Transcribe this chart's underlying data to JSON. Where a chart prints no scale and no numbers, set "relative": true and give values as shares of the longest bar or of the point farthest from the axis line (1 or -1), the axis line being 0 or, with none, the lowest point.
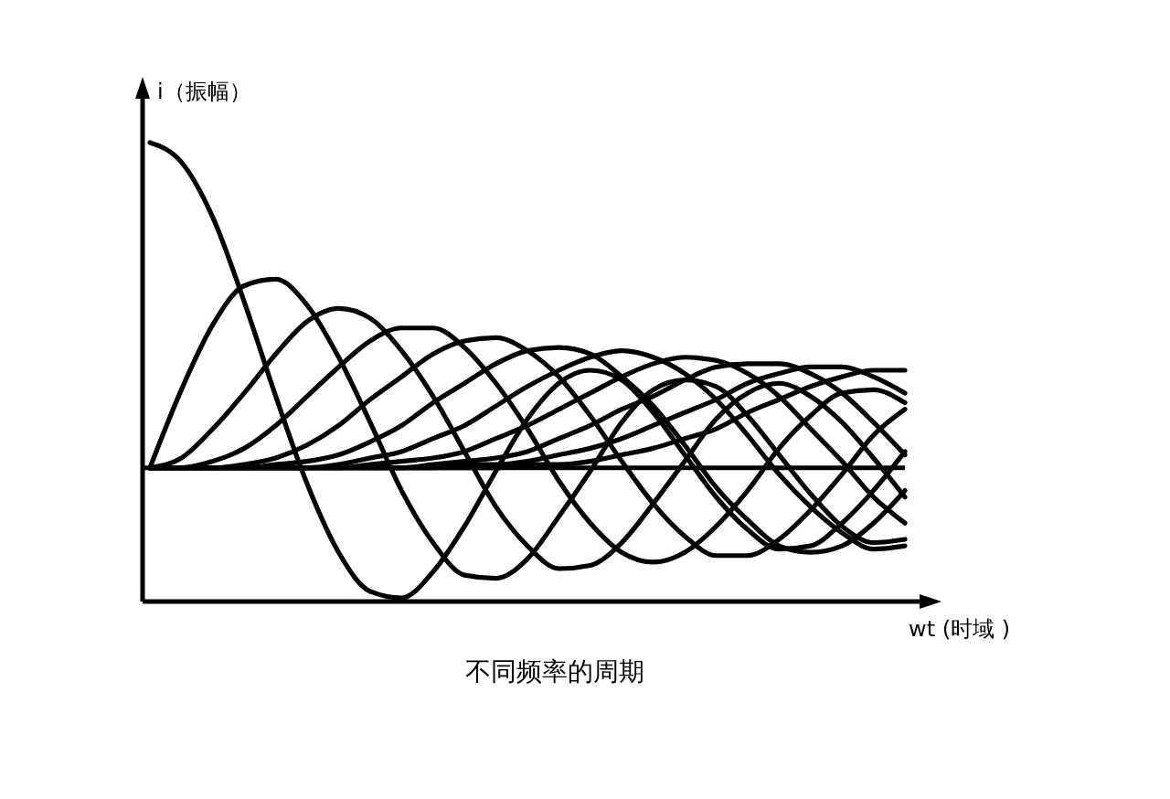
{
  "chart_data": {
    "type": "line",
    "title": "不同频率的周期",
    "xlabel": "wt (时域 )",
    "ylabel": "i（振幅）",
    "relative": true,
    "categories": [
      null,
      null,
      null,
      null,
      null,
      null,
      null,
      null,
      null,
      null,
      null,
      null,
      null,
      null,
      null,
      null,
      null,
      null,
      null,
      null,
      null,
      null,
      null,
      null,
      null
    ],
    "series": [
      {
        "color": "#000000",
        "values": [
          1,
          0.94,
          0.77,
          0.51,
          0.22,
          -0.05,
          -0.26,
          -0.38,
          -0.4,
          -0.32,
          -0.18,
          -0.01,
          0.15,
          0.26,
          0.3,
          0.27,
          0.17,
          0.04,
          -0.09,
          -0.19,
          -0.25,
          -0.24,
          -0.17,
          -0.07,
          0.05
        ]
      },
      {
        "color": "#000000",
        "values": [
          0,
          0.24,
          0.44,
          0.56,
          0.58,
          0.5,
          0.34,
          0.14,
          -0.07,
          -0.23,
          -0.33,
          -0.34,
          -0.28,
          -0.15,
          -0.01,
          0.14,
          0.24,
          0.27,
          0.25,
          0.16,
          0.04,
          -0.08,
          -0.18,
          -0.23,
          -0.22
        ]
      },
      {
        "color": "#000000",
        "values": [
          0,
          0.03,
          0.12,
          0.23,
          0.35,
          0.45,
          0.49,
          0.46,
          0.36,
          0.22,
          0.05,
          -0.12,
          -0.24,
          -0.31,
          -0.3,
          -0.23,
          -0.11,
          0.02,
          0.15,
          0.23,
          0.26,
          0.22,
          0.14,
          0.03,
          -0.09
        ]
      },
      {
        "color": "#000000",
        "values": [
          0,
          0,
          0.02,
          0.06,
          0.13,
          0.22,
          0.31,
          0.39,
          0.43,
          0.43,
          0.37,
          0.26,
          0.12,
          -0.04,
          -0.17,
          -0.26,
          -0.29,
          -0.26,
          -0.18,
          -0.07,
          0.06,
          0.16,
          0.23,
          0.24,
          0.2
        ]
      },
      {
        "color": "#000000",
        "values": [
          0,
          0,
          0,
          0.01,
          0.03,
          0.07,
          0.13,
          0.21,
          0.28,
          0.35,
          0.39,
          0.4,
          0.36,
          0.28,
          0.16,
          0.02,
          -0.11,
          -0.21,
          -0.27,
          -0.27,
          -0.22,
          -0.13,
          -0.02,
          0.1,
          0.18
        ]
      },
      {
        "color": "#000000",
        "values": [
          0,
          0,
          0,
          0,
          0.01,
          0.02,
          0.04,
          0.08,
          0.13,
          0.2,
          0.26,
          0.32,
          0.36,
          0.37,
          0.35,
          0.28,
          0.19,
          0.07,
          -0.06,
          -0.16,
          -0.24,
          -0.26,
          -0.24,
          -0.17,
          -0.07
        ]
      },
      {
        "color": "#000000",
        "values": [
          0,
          0,
          0,
          0,
          0,
          0,
          0.01,
          0.03,
          0.05,
          0.09,
          0.13,
          0.19,
          0.25,
          0.3,
          0.34,
          0.36,
          0.34,
          0.29,
          0.21,
          0.1,
          -0.02,
          -0.12,
          -0.2,
          -0.25,
          -0.24
        ]
      },
      {
        "color": "#000000",
        "values": [
          0,
          0,
          0,
          0,
          0,
          0,
          0,
          0.01,
          0.02,
          0.03,
          0.05,
          0.09,
          0.13,
          0.18,
          0.23,
          0.28,
          0.32,
          0.34,
          0.33,
          0.29,
          0.22,
          0.12,
          0.02,
          -0.09,
          -0.17
        ]
      },
      {
        "color": "#000000",
        "values": [
          0,
          0,
          0,
          0,
          0,
          0,
          0,
          0,
          0,
          0.01,
          0.02,
          0.03,
          0.05,
          0.09,
          0.13,
          0.18,
          0.22,
          0.27,
          0.31,
          0.32,
          0.32,
          0.29,
          0.23,
          0.14,
          0.04
        ]
      },
      {
        "color": "#000000",
        "values": [
          0,
          0,
          0,
          0,
          0,
          0,
          0,
          0,
          0,
          0,
          0.01,
          0.01,
          0.02,
          0.04,
          0.06,
          0.09,
          0.13,
          0.17,
          0.21,
          0.26,
          0.29,
          0.31,
          0.31,
          0.28,
          0.23
        ]
      },
      {
        "color": "#000000",
        "values": [
          0,
          0,
          0,
          0,
          0,
          0,
          0,
          0,
          0,
          0,
          0,
          0,
          0.01,
          0.01,
          0.02,
          0.04,
          0.06,
          0.09,
          0.12,
          0.17,
          0.21,
          0.25,
          0.28,
          0.3,
          0.3
        ]
      }
    ]
  }
}
